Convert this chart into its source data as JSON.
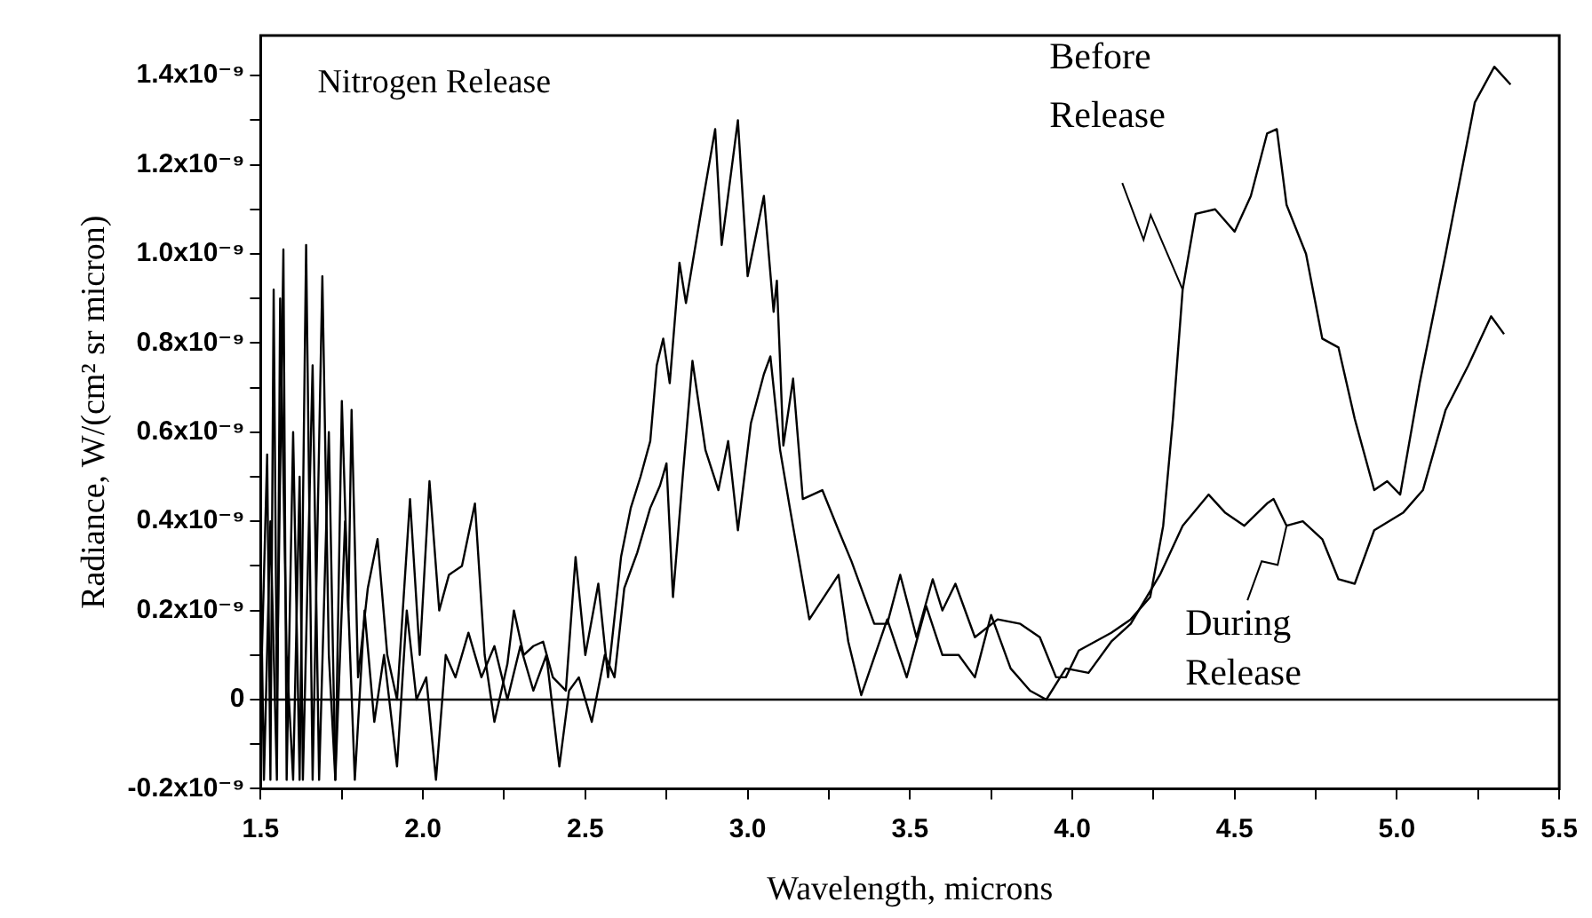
{
  "chart_data": {
    "type": "line",
    "xlabel": "Wavelength, microns",
    "ylabel": "Radiance, W/(cm² sr micron)",
    "xlim": [
      1.5,
      5.5
    ],
    "xticks": [
      1.5,
      {
        "value": 1.75,
        "label": null
      },
      {
        "value": 2,
        "label": "2.0"
      },
      {
        "value": 2.25,
        "label": null
      },
      2.5,
      {
        "value": 2.75,
        "label": null
      },
      {
        "value": 3,
        "label": "3.0"
      },
      {
        "value": 3.25,
        "label": null
      },
      3.5,
      {
        "value": 3.75,
        "label": null
      },
      {
        "value": 4,
        "label": "4.0"
      },
      {
        "value": 4.25,
        "label": null
      },
      4.5,
      {
        "value": 4.75,
        "label": null
      },
      {
        "value": 5,
        "label": "5.0"
      },
      {
        "value": 5.25,
        "label": null
      },
      5.5
    ],
    "ylim": [
      -2e-10,
      1.49e-09
    ],
    "yticks": [
      {
        "value": -2e-10,
        "label": "-0.2x10⁻⁹"
      },
      {
        "value": -1e-10,
        "label": null
      },
      0,
      {
        "value": 1e-10,
        "label": null
      },
      {
        "value": 2e-10,
        "label": "0.2x10⁻⁹"
      },
      {
        "value": 3e-10,
        "label": null
      },
      {
        "value": 4e-10,
        "label": "0.4x10⁻⁹"
      },
      {
        "value": 5e-10,
        "label": null
      },
      {
        "value": 6e-10,
        "label": "0.6x10⁻⁹"
      },
      {
        "value": 7e-10,
        "label": null
      },
      {
        "value": 8e-10,
        "label": "0.8x10⁻⁹"
      },
      {
        "value": 9e-10,
        "label": null
      },
      {
        "value": 1e-09,
        "label": "1.0x10⁻⁹"
      },
      {
        "value": 1.1e-09,
        "label": null
      },
      {
        "value": 1.2e-09,
        "label": "1.2x10⁻⁹"
      },
      {
        "value": 1.3e-09,
        "label": null
      },
      {
        "value": 1.4e-09,
        "label": "1.4x10⁻⁹"
      }
    ],
    "grid": false,
    "marker": "none",
    "line_style": "solid",
    "ref_lines": [
      {
        "axis": "y",
        "value": 0,
        "color": "#000000"
      }
    ],
    "annotations": [
      "Nitrogen Release",
      {
        "text": "Before Release",
        "x": 4.34,
        "y": 9.2e-10
      },
      {
        "text": "During Release",
        "x": 4.66,
        "y": 3.9e-10
      }
    ],
    "series": [
      {
        "color": "#000000",
        "x": [
          1.5,
          1.52,
          1.53,
          1.54,
          1.55,
          1.57,
          1.58,
          1.6,
          1.62,
          1.64,
          1.66,
          1.69,
          1.71,
          1.73,
          1.75,
          1.77,
          1.78,
          1.8,
          1.83,
          1.86,
          1.89,
          1.92,
          1.96,
          1.99,
          2.02,
          2.05,
          2.08,
          2.12,
          2.16,
          2.19,
          2.22,
          2.26,
          2.28,
          2.31,
          2.34,
          2.37,
          2.4,
          2.44,
          2.47,
          2.5,
          2.54,
          2.57,
          2.61,
          2.64,
          2.67,
          2.7,
          2.72,
          2.74,
          2.76,
          2.79,
          2.81,
          2.86,
          2.9,
          2.92,
          2.97,
          3.0,
          3.05,
          3.08,
          3.09,
          3.11,
          3.14,
          3.17,
          3.23,
          3.28,
          3.32,
          3.39,
          3.43,
          3.47,
          3.52,
          3.57,
          3.6,
          3.64,
          3.7,
          3.77,
          3.84,
          3.9,
          3.95,
          3.98,
          4.02,
          4.07,
          4.12,
          4.18,
          4.24,
          4.28,
          4.31,
          4.34,
          4.38,
          4.44,
          4.5,
          4.55,
          4.6,
          4.63,
          4.66,
          4.72,
          4.77,
          4.82,
          4.87,
          4.93,
          4.97,
          5.01,
          5.07,
          5.15,
          5.24,
          5.3,
          5.35
        ],
        "values": [
          0,
          5.5e-10,
          -1.8e-10,
          9.2e-10,
          0,
          1.01e-09,
          -1.8e-10,
          6e-10,
          -1.8e-10,
          1.02e-09,
          -1.8e-10,
          9.5e-10,
          1e-10,
          -1.8e-10,
          6.7e-10,
          2e-10,
          6.5e-10,
          5e-11,
          2.5e-10,
          3.6e-10,
          1e-10,
          0,
          4.5e-10,
          1e-10,
          4.9e-10,
          2e-10,
          2.8e-10,
          3e-10,
          4.4e-10,
          1e-10,
          -5e-11,
          8e-11,
          2e-10,
          1e-10,
          1.2e-10,
          1.3e-10,
          5e-11,
          2e-11,
          3.2e-10,
          1e-10,
          2.6e-10,
          5e-11,
          3.2e-10,
          4.3e-10,
          5e-10,
          5.8e-10,
          7.5e-10,
          8.1e-10,
          7.1e-10,
          9.8e-10,
          8.9e-10,
          1.11e-09,
          1.28e-09,
          1.02e-09,
          1.3e-09,
          9.5e-10,
          1.13e-09,
          8.7e-10,
          9.4e-10,
          5.7e-10,
          7.2e-10,
          4.5e-10,
          4.7e-10,
          3.8e-10,
          3.1e-10,
          1.7e-10,
          1.7e-10,
          2.8e-10,
          1.4e-10,
          2.7e-10,
          2e-10,
          2.6e-10,
          1.4e-10,
          1.8e-10,
          1.7e-10,
          1.4e-10,
          5e-11,
          5e-11,
          1.1e-10,
          1.3e-10,
          1.5e-10,
          1.8e-10,
          2.3e-10,
          3.9e-10,
          6.3e-10,
          9.2e-10,
          1.09e-09,
          1.1e-09,
          1.05e-09,
          1.13e-09,
          1.27e-09,
          1.28e-09,
          1.11e-09,
          1e-09,
          8.1e-10,
          7.9e-10,
          6.3e-10,
          4.7e-10,
          4.9e-10,
          4.6e-10,
          7.1e-10,
          1e-09,
          1.34e-09,
          1.42e-09,
          1.38e-09
        ]
      },
      {
        "color": "#000000",
        "x": [
          1.5,
          1.51,
          1.53,
          1.55,
          1.56,
          1.58,
          1.6,
          1.62,
          1.63,
          1.66,
          1.68,
          1.71,
          1.73,
          1.76,
          1.79,
          1.82,
          1.85,
          1.88,
          1.92,
          1.95,
          1.98,
          2.01,
          2.04,
          2.07,
          2.1,
          2.14,
          2.18,
          2.22,
          2.26,
          2.3,
          2.34,
          2.38,
          2.42,
          2.45,
          2.48,
          2.52,
          2.56,
          2.59,
          2.62,
          2.66,
          2.7,
          2.73,
          2.75,
          2.77,
          2.8,
          2.83,
          2.87,
          2.91,
          2.94,
          2.97,
          3.01,
          3.05,
          3.07,
          3.1,
          3.13,
          3.19,
          3.28,
          3.31,
          3.35,
          3.43,
          3.49,
          3.55,
          3.6,
          3.65,
          3.7,
          3.75,
          3.81,
          3.87,
          3.92,
          3.98,
          4.05,
          4.12,
          4.18,
          4.27,
          4.34,
          4.42,
          4.47,
          4.53,
          4.6,
          4.62,
          4.66,
          4.71,
          4.77,
          4.82,
          4.87,
          4.93,
          5.02,
          5.08,
          5.15,
          5.22,
          5.29,
          5.33
        ],
        "values": [
          3e-10,
          -1.8e-10,
          4e-10,
          -1.8e-10,
          9e-10,
          1e-10,
          -1.8e-10,
          5e-10,
          -1.8e-10,
          7.5e-10,
          -1.8e-10,
          6e-10,
          -1.8e-10,
          4e-10,
          -1.8e-10,
          2e-10,
          -5e-11,
          1e-10,
          -1.5e-10,
          2e-10,
          0,
          5e-11,
          -1.8e-10,
          1e-10,
          5e-11,
          1.5e-10,
          5e-11,
          1.2e-10,
          0,
          1.2e-10,
          2e-11,
          1e-10,
          -1.5e-10,
          2e-11,
          5e-11,
          -5e-11,
          1e-10,
          5e-11,
          2.5e-10,
          3.3e-10,
          4.3e-10,
          4.8e-10,
          5.3e-10,
          2.3e-10,
          5e-10,
          7.6e-10,
          5.6e-10,
          4.7e-10,
          5.8e-10,
          3.8e-10,
          6.2e-10,
          7.3e-10,
          7.7e-10,
          5.6e-10,
          4.3e-10,
          1.8e-10,
          2.8e-10,
          1.3e-10,
          1e-11,
          1.8e-10,
          5e-11,
          2.1e-10,
          1e-10,
          1e-10,
          5e-11,
          1.9e-10,
          7e-11,
          2e-11,
          0,
          7e-11,
          6e-11,
          1.3e-10,
          1.7e-10,
          2.8e-10,
          3.9e-10,
          4.6e-10,
          4.2e-10,
          3.9e-10,
          4.4e-10,
          4.5e-10,
          3.9e-10,
          4e-10,
          3.6e-10,
          2.7e-10,
          2.6e-10,
          3.8e-10,
          4.2e-10,
          4.7e-10,
          6.5e-10,
          7.5e-10,
          8.6e-10,
          8.2e-10
        ]
      }
    ]
  }
}
